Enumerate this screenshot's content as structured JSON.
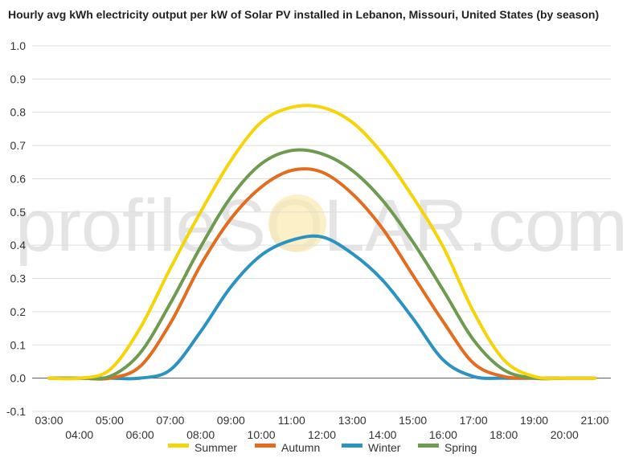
{
  "chart_data": {
    "type": "line",
    "title": "Hourly avg kWh electricity output per kW of Solar PV installed in Lebanon, Missouri, United States (by season)",
    "xlabel": "",
    "ylabel": "",
    "ylim": [
      -0.1,
      1.0
    ],
    "y_ticks": [
      "-0.1",
      "0.0",
      "0.1",
      "0.2",
      "0.3",
      "0.4",
      "0.5",
      "0.6",
      "0.7",
      "0.8",
      "0.9",
      "1.0"
    ],
    "x_ticks": [
      "03:00",
      "04:00",
      "05:00",
      "06:00",
      "07:00",
      "08:00",
      "09:00",
      "10:00",
      "11:00",
      "12:00",
      "13:00",
      "14:00",
      "15:00",
      "16:00",
      "17:00",
      "18:00",
      "19:00",
      "20:00",
      "21:00"
    ],
    "grid": true,
    "legend": "bottom",
    "watermark": "profileSOLAR.com",
    "series": [
      {
        "name": "Summer",
        "color": "#f5d40a",
        "values": [
          0.0,
          0.0,
          0.025,
          0.15,
          0.33,
          0.5,
          0.655,
          0.77,
          0.815,
          0.815,
          0.77,
          0.675,
          0.545,
          0.395,
          0.2,
          0.055,
          0.005,
          0.0,
          0.0
        ]
      },
      {
        "name": "Autumn",
        "color": "#e46c1e",
        "values": [
          0.0,
          0.0,
          0.0,
          0.035,
          0.165,
          0.34,
          0.48,
          0.575,
          0.625,
          0.62,
          0.555,
          0.45,
          0.31,
          0.17,
          0.045,
          0.005,
          0.0,
          0.0,
          0.0
        ]
      },
      {
        "name": "Winter",
        "color": "#2a93c0",
        "values": [
          0.0,
          0.0,
          0.0,
          0.0,
          0.025,
          0.14,
          0.275,
          0.37,
          0.415,
          0.425,
          0.375,
          0.295,
          0.18,
          0.055,
          0.005,
          0.0,
          0.0,
          0.0,
          0.0
        ]
      },
      {
        "name": "Spring",
        "color": "#6e9b4f",
        "values": [
          0.0,
          0.0,
          0.005,
          0.075,
          0.225,
          0.395,
          0.545,
          0.645,
          0.685,
          0.675,
          0.625,
          0.535,
          0.41,
          0.265,
          0.115,
          0.025,
          0.0,
          0.0,
          0.0
        ]
      }
    ]
  }
}
